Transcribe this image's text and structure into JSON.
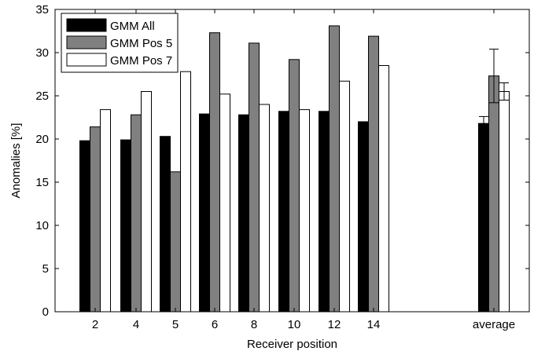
{
  "chart_data": {
    "type": "bar",
    "title": "",
    "xlabel": "Receiver position",
    "ylabel": "Anomalies [%]",
    "ylim": [
      0,
      35
    ],
    "yticks": [
      0,
      5,
      10,
      15,
      20,
      25,
      30,
      35
    ],
    "grid": false,
    "legend_position": "top-left",
    "categories": [
      "2",
      "4",
      "5",
      "6",
      "8",
      "10",
      "12",
      "14",
      "average"
    ],
    "series": [
      {
        "name": "GMM All",
        "color": "#000000",
        "values": [
          19.8,
          19.9,
          20.3,
          22.9,
          22.8,
          23.2,
          23.2,
          22.0,
          21.8
        ],
        "error": [
          null,
          null,
          null,
          null,
          null,
          null,
          null,
          null,
          0.8
        ]
      },
      {
        "name": "GMM Pos 5",
        "color": "#808080",
        "values": [
          21.4,
          22.8,
          16.2,
          32.3,
          31.1,
          29.2,
          33.1,
          31.9,
          27.3
        ],
        "error": [
          null,
          null,
          null,
          null,
          null,
          null,
          null,
          null,
          3.1
        ]
      },
      {
        "name": "GMM Pos 7",
        "color": "#ffffff",
        "values": [
          23.4,
          25.5,
          27.8,
          25.2,
          24.0,
          23.4,
          26.7,
          28.5,
          25.5
        ],
        "error": [
          null,
          null,
          null,
          null,
          null,
          null,
          null,
          null,
          1.0
        ]
      }
    ]
  }
}
